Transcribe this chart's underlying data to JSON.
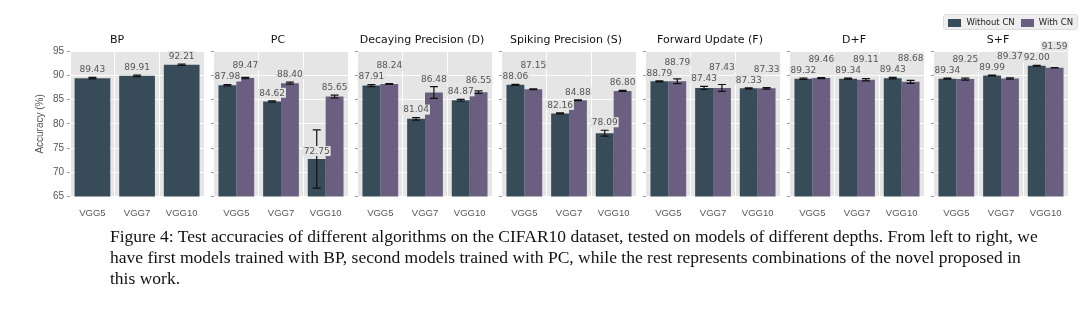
{
  "chart_data": [
    {
      "type": "bar",
      "title": "BP",
      "ylabel": "Accuracy (%)",
      "categories": [
        "VGG5",
        "VGG7",
        "VGG10"
      ],
      "ylim": [
        65,
        95
      ],
      "yticks": [
        65,
        70,
        75,
        80,
        85,
        90,
        95
      ],
      "grid": true,
      "legend": false,
      "series": [
        {
          "color": "#384b59",
          "values": [
            89.43,
            89.91,
            92.21
          ],
          "errors": [
            0.15,
            0.15,
            0.15
          ],
          "value_labels": [
            "89.43",
            "89.91",
            "92.21"
          ]
        }
      ]
    },
    {
      "type": "bar",
      "title": "PC",
      "categories": [
        "VGG5",
        "VGG7",
        "VGG10"
      ],
      "ylim": [
        65,
        95
      ],
      "yticks": [
        65,
        70,
        75,
        80,
        85,
        90,
        95
      ],
      "grid": true,
      "legend": false,
      "tick_labels": "x",
      "series": [
        {
          "color": "#384b59",
          "values": [
            87.98,
            84.62,
            72.75
          ],
          "errors": [
            0.15,
            0.15,
            6.0
          ],
          "value_labels": [
            "87.98",
            "84.62",
            "72.75"
          ]
        },
        {
          "color": "#6a5f80",
          "values": [
            89.47,
            88.4,
            85.65
          ],
          "errors": [
            0.15,
            0.2,
            0.3
          ],
          "value_labels": [
            "89.47",
            "88.40",
            "85.65"
          ]
        }
      ]
    },
    {
      "type": "bar",
      "title": "Decaying Precision (D)",
      "categories": [
        "VGG5",
        "VGG7",
        "VGG10"
      ],
      "ylim": [
        65,
        95
      ],
      "yticks": [
        65,
        70,
        75,
        80,
        85,
        90,
        95
      ],
      "grid": true,
      "legend": false,
      "tick_labels": "x",
      "series": [
        {
          "color": "#384b59",
          "values": [
            87.91,
            81.04,
            84.87
          ],
          "errors": [
            0.2,
            0.25,
            0.2
          ],
          "value_labels": [
            "87.91",
            "81.04",
            "84.87"
          ]
        },
        {
          "color": "#6a5f80",
          "values": [
            88.24,
            86.48,
            86.55
          ],
          "errors": [
            0.1,
            1.2,
            0.25
          ],
          "value_labels": [
            "88.24",
            "86.48",
            "86.55"
          ]
        }
      ]
    },
    {
      "type": "bar",
      "title": "Spiking Precision (S)",
      "categories": [
        "VGG5",
        "VGG7",
        "VGG10"
      ],
      "ylim": [
        65,
        95
      ],
      "yticks": [
        65,
        70,
        75,
        80,
        85,
        90,
        95
      ],
      "grid": true,
      "legend": false,
      "tick_labels": "x",
      "series": [
        {
          "color": "#384b59",
          "values": [
            88.06,
            82.16,
            78.09
          ],
          "errors": [
            0.1,
            0.1,
            0.6
          ],
          "value_labels": [
            "88.06",
            "82.16",
            "78.09"
          ]
        },
        {
          "color": "#6a5f80",
          "values": [
            87.15,
            84.88,
            86.8
          ],
          "errors": [
            0.1,
            0.1,
            0.1
          ],
          "value_labels": [
            "87.15",
            "84.88",
            "86.80"
          ]
        }
      ]
    },
    {
      "type": "bar",
      "title": "Forward Update (F)",
      "categories": [
        "VGG5",
        "VGG7",
        "VGG10"
      ],
      "ylim": [
        65,
        95
      ],
      "yticks": [
        65,
        70,
        75,
        80,
        85,
        90,
        95
      ],
      "grid": true,
      "legend": false,
      "tick_labels": "x",
      "series": [
        {
          "color": "#384b59",
          "values": [
            88.79,
            87.43,
            87.33
          ],
          "errors": [
            0.1,
            0.3,
            0.1
          ],
          "value_labels": [
            "88.79",
            "87.43",
            "87.33"
          ]
        },
        {
          "color": "#6a5f80",
          "values": [
            88.79,
            87.43,
            87.33
          ],
          "errors": [
            0.5,
            0.7,
            0.15
          ],
          "value_labels": [
            "88.79",
            "87.43",
            "87.33"
          ]
        }
      ]
    },
    {
      "type": "bar",
      "title": "D+F",
      "categories": [
        "VGG5",
        "VGG7",
        "VGG10"
      ],
      "ylim": [
        65,
        95
      ],
      "yticks": [
        65,
        70,
        75,
        80,
        85,
        90,
        95
      ],
      "grid": true,
      "legend": false,
      "tick_labels": "x",
      "series": [
        {
          "color": "#384b59",
          "values": [
            89.32,
            89.34,
            89.43
          ],
          "errors": [
            0.15,
            0.1,
            0.15
          ],
          "value_labels": [
            "89.32",
            "89.34",
            "89.43"
          ]
        },
        {
          "color": "#6a5f80",
          "values": [
            89.46,
            89.11,
            88.68
          ],
          "errors": [
            0.1,
            0.25,
            0.3
          ],
          "value_labels": [
            "89.46",
            "89.11",
            "88.68"
          ]
        }
      ]
    },
    {
      "type": "bar",
      "title": "S+F",
      "categories": [
        "VGG5",
        "VGG7",
        "VGG10"
      ],
      "ylim": [
        65,
        95
      ],
      "yticks": [
        65,
        70,
        75,
        80,
        85,
        90,
        95
      ],
      "grid": true,
      "legend": "top right",
      "tick_labels": "x",
      "annotations": [
        "Figure 4: Test accuracies of different algorithms on the CIFAR10 dataset, tested on models of different depths. From left to right, we have first models trained with BP, second models trained with PC, while the rest represents combinations of the novel proposed in this work."
      ],
      "series": [
        {
          "name": "Without CN",
          "color": "#384b59",
          "values": [
            89.34,
            89.99,
            92.0
          ],
          "errors": [
            0.1,
            0.1,
            0.1
          ],
          "value_labels": [
            "89.34",
            "89.99",
            "92.00"
          ]
        },
        {
          "name": "With CN",
          "color": "#6a5f80",
          "values": [
            89.25,
            89.37,
            91.59
          ],
          "errors": [
            0.2,
            0.15,
            0.05
          ],
          "value_labels": [
            "89.25",
            "89.37",
            "91.59"
          ]
        }
      ]
    }
  ]
}
